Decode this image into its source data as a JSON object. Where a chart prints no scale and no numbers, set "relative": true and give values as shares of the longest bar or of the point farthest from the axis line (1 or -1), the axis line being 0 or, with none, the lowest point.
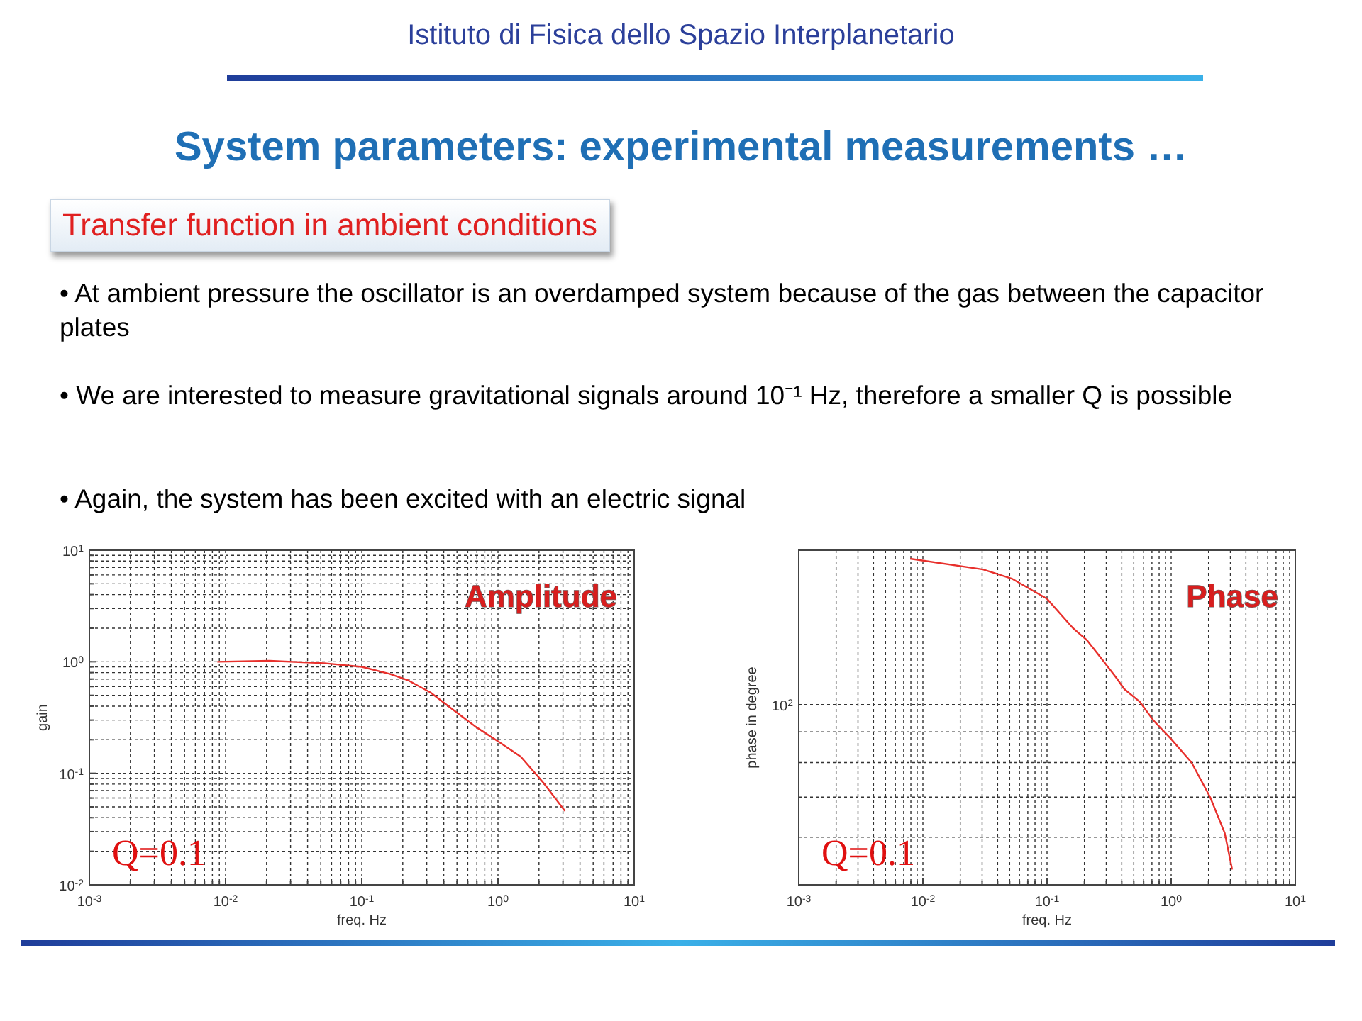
{
  "chart_data": [
    {
      "type": "other",
      "title": "System parameters: experimental measurements …",
      "subtitle": "Transfer function in ambient conditions",
      "annotations": [
        "Istituto di Fisica dello Spazio Interplanetario",
        "• At ambient pressure the oscillator is an overdamped system because of the gas between the capacitor plates",
        "• We are interested to measure gravitational signals around 10⁻¹ Hz, therefore a smaller Q is possible",
        "• Again, the system has been excited with an electric signal"
      ]
    },
    {
      "type": "line",
      "xlabel": "freq. Hz",
      "ylabel": "gain",
      "log": "xy",
      "grid": true,
      "annotations": [
        "Amplitude",
        "Q=0.1"
      ],
      "xlim": [
        0.001,
        10
      ],
      "ylim": [
        0.01,
        10
      ],
      "xticks": [
        {
          "value": 0.001,
          "label": "10$^{-3}$"
        },
        {
          "value": 0.002,
          "label": null
        },
        {
          "value": 0.003,
          "label": null
        },
        {
          "value": 0.004,
          "label": null
        },
        {
          "value": 0.005,
          "label": null
        },
        {
          "value": 0.006,
          "label": null
        },
        {
          "value": 0.007,
          "label": null
        },
        {
          "value": 0.008,
          "label": null
        },
        {
          "value": 0.009,
          "label": null
        },
        {
          "value": 0.01,
          "label": "10$^{-2}$"
        },
        {
          "value": 0.02,
          "label": null
        },
        {
          "value": 0.03,
          "label": null
        },
        {
          "value": 0.04,
          "label": null
        },
        {
          "value": 0.05,
          "label": null
        },
        {
          "value": 0.06,
          "label": null
        },
        {
          "value": 0.07,
          "label": null
        },
        {
          "value": 0.08,
          "label": null
        },
        {
          "value": 0.09,
          "label": null
        },
        {
          "value": 0.1,
          "label": "10$^{-1}$"
        },
        {
          "value": 0.2,
          "label": null
        },
        {
          "value": 0.3,
          "label": null
        },
        {
          "value": 0.4,
          "label": null
        },
        {
          "value": 0.5,
          "label": null
        },
        {
          "value": 0.6,
          "label": null
        },
        {
          "value": 0.7,
          "label": null
        },
        {
          "value": 0.8,
          "label": null
        },
        {
          "value": 0.9,
          "label": null
        },
        {
          "value": 1,
          "label": "10$^{0}$"
        },
        {
          "value": 2,
          "label": null
        },
        {
          "value": 3,
          "label": null
        },
        {
          "value": 4,
          "label": null
        },
        {
          "value": 5,
          "label": null
        },
        {
          "value": 6,
          "label": null
        },
        {
          "value": 7,
          "label": null
        },
        {
          "value": 8,
          "label": null
        },
        {
          "value": 9,
          "label": null
        },
        {
          "value": 10,
          "label": "10$^{1}$"
        }
      ],
      "yticks": [
        {
          "value": 0.01,
          "label": "10$^{-2}$"
        },
        {
          "value": 0.02,
          "label": null
        },
        {
          "value": 0.03,
          "label": null
        },
        {
          "value": 0.04,
          "label": null
        },
        {
          "value": 0.05,
          "label": null
        },
        {
          "value": 0.06,
          "label": null
        },
        {
          "value": 0.07,
          "label": null
        },
        {
          "value": 0.08,
          "label": null
        },
        {
          "value": 0.09,
          "label": null
        },
        {
          "value": 0.1,
          "label": "10$^{-1}$"
        },
        {
          "value": 0.2,
          "label": null
        },
        {
          "value": 0.3,
          "label": null
        },
        {
          "value": 0.4,
          "label": null
        },
        {
          "value": 0.5,
          "label": null
        },
        {
          "value": 0.6,
          "label": null
        },
        {
          "value": 0.7,
          "label": null
        },
        {
          "value": 0.8,
          "label": null
        },
        {
          "value": 0.9,
          "label": null
        },
        {
          "value": 1,
          "label": "10$^{0}$"
        },
        {
          "value": 2,
          "label": null
        },
        {
          "value": 3,
          "label": null
        },
        {
          "value": 4,
          "label": null
        },
        {
          "value": 5,
          "label": null
        },
        {
          "value": 6,
          "label": null
        },
        {
          "value": 7,
          "label": null
        },
        {
          "value": 8,
          "label": null
        },
        {
          "value": 9,
          "label": null
        },
        {
          "value": 10,
          "label": "10$^{1}$"
        }
      ],
      "series": [
        {
          "color": "#e8302c",
          "x": [
            0.0087,
            0.021,
            0.053,
            0.1,
            0.16,
            0.22,
            0.32,
            0.47,
            0.69,
            1.0,
            1.47,
            2.16,
            3.1
          ],
          "values": [
            1.0,
            1.02,
            0.97,
            0.9,
            0.78,
            0.68,
            0.53,
            0.37,
            0.26,
            0.194,
            0.141,
            0.082,
            0.046
          ]
        }
      ]
    },
    {
      "type": "line",
      "xlabel": "freq. Hz",
      "ylabel": "phase in degree",
      "log": "x",
      "grid": "x",
      "relative": true,
      "annotations": [
        "Phase",
        "Q=0.1",
        "10$^{2}$"
      ],
      "ref_lines": [
        {
          "axis": "y",
          "value": 0.146,
          "color": "#333333",
          "line_style": "dashed"
        },
        {
          "axis": "y",
          "value": 0.269,
          "color": "#333333",
          "line_style": "dashed"
        },
        {
          "axis": "y",
          "value": 0.375,
          "color": "#333333",
          "line_style": "dashed"
        },
        {
          "axis": "y",
          "value": 0.469,
          "color": "#333333",
          "line_style": "dashed"
        },
        {
          "axis": "y",
          "value": 0.553,
          "color": "#333333",
          "line_style": "dashed"
        }
      ],
      "xlim": [
        0.001,
        10
      ],
      "xticks": [
        {
          "value": 0.001,
          "label": "10$^{-3}$"
        },
        {
          "value": 0.002,
          "label": null
        },
        {
          "value": 0.003,
          "label": null
        },
        {
          "value": 0.004,
          "label": null
        },
        {
          "value": 0.005,
          "label": null
        },
        {
          "value": 0.006,
          "label": null
        },
        {
          "value": 0.007,
          "label": null
        },
        {
          "value": 0.008,
          "label": null
        },
        {
          "value": 0.009,
          "label": null
        },
        {
          "value": 0.01,
          "label": "10$^{-2}$"
        },
        {
          "value": 0.02,
          "label": null
        },
        {
          "value": 0.03,
          "label": null
        },
        {
          "value": 0.04,
          "label": null
        },
        {
          "value": 0.05,
          "label": null
        },
        {
          "value": 0.06,
          "label": null
        },
        {
          "value": 0.07,
          "label": null
        },
        {
          "value": 0.08,
          "label": null
        },
        {
          "value": 0.09,
          "label": null
        },
        {
          "value": 0.1,
          "label": "10$^{-1}$"
        },
        {
          "value": 0.2,
          "label": null
        },
        {
          "value": 0.3,
          "label": null
        },
        {
          "value": 0.4,
          "label": null
        },
        {
          "value": 0.5,
          "label": null
        },
        {
          "value": 0.6,
          "label": null
        },
        {
          "value": 0.7,
          "label": null
        },
        {
          "value": 0.8,
          "label": null
        },
        {
          "value": 0.9,
          "label": null
        },
        {
          "value": 1,
          "label": "10$^{0}$"
        },
        {
          "value": 2,
          "label": null
        },
        {
          "value": 3,
          "label": null
        },
        {
          "value": 4,
          "label": null
        },
        {
          "value": 5,
          "label": null
        },
        {
          "value": 6,
          "label": null
        },
        {
          "value": 7,
          "label": null
        },
        {
          "value": 8,
          "label": null
        },
        {
          "value": 9,
          "label": null
        },
        {
          "value": 10,
          "label": "10$^{1}$"
        }
      ],
      "series": [
        {
          "color": "#e8302c",
          "x": [
            0.0079,
            0.0305,
            0.052,
            0.1,
            0.162,
            0.21,
            0.285,
            0.36,
            0.42,
            0.56,
            0.72,
            1.0,
            1.46,
            2.06,
            2.7,
            3.1
          ],
          "values": [
            1.0,
            0.967,
            0.939,
            0.877,
            0.787,
            0.75,
            0.686,
            0.636,
            0.6,
            0.561,
            0.504,
            0.447,
            0.375,
            0.269,
            0.159,
            0.047
          ]
        }
      ]
    }
  ]
}
